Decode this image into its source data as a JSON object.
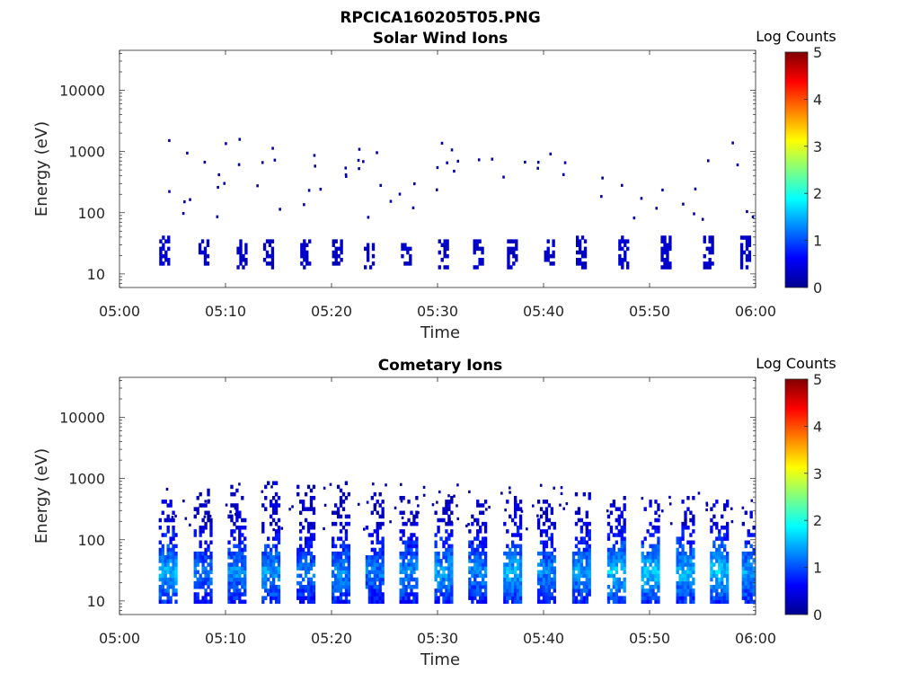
{
  "figure": {
    "title": "RPCICA160205T05.PNG"
  },
  "colorscale": {
    "stops": [
      "#00008f",
      "#0000ff",
      "#0080ff",
      "#00ffff",
      "#80ff80",
      "#ffff00",
      "#ff8000",
      "#ff0000",
      "#800000"
    ]
  },
  "chart_data": [
    {
      "type": "heatmap",
      "title": "Solar Wind Ions",
      "xlabel": "Time",
      "ylabel": "Energy (eV)",
      "x_range": [
        "05:00",
        "06:00"
      ],
      "x_ticks": [
        "05:00",
        "05:10",
        "05:20",
        "05:30",
        "05:40",
        "05:50",
        "06:00"
      ],
      "y_scale": "log",
      "y_range": [
        6,
        45000
      ],
      "y_ticks": [
        10,
        100,
        1000,
        10000
      ],
      "y_tick_labels": [
        "10",
        "100",
        "1000",
        "10000"
      ],
      "colorbar": {
        "label": "Log Counts",
        "range": [
          0,
          5
        ],
        "ticks": [
          "0",
          "1",
          "2",
          "3",
          "4",
          "5"
        ]
      },
      "clusters": [
        {
          "t": 4.2,
          "e_low": 15,
          "e_high": 35,
          "log_counts": 0.3
        },
        {
          "t": 7.9,
          "e_low": 17,
          "e_high": 30,
          "log_counts": 0.25
        },
        {
          "t": 11.5,
          "e_low": 14,
          "e_high": 30,
          "log_counts": 0.2
        },
        {
          "t": 14.0,
          "e_low": 14,
          "e_high": 30,
          "log_counts": 0.2
        },
        {
          "t": 17.5,
          "e_low": 14,
          "e_high": 30,
          "log_counts": 0.25
        },
        {
          "t": 20.5,
          "e_low": 15,
          "e_high": 30,
          "log_counts": 0.2
        },
        {
          "t": 23.5,
          "e_low": 14,
          "e_high": 30,
          "log_counts": 0.2
        },
        {
          "t": 27.0,
          "e_low": 17,
          "e_high": 28,
          "log_counts": 0.25
        },
        {
          "t": 30.5,
          "e_low": 14,
          "e_high": 30,
          "log_counts": 0.2
        },
        {
          "t": 33.8,
          "e_low": 14,
          "e_high": 30,
          "log_counts": 0.25
        },
        {
          "t": 37.0,
          "e_low": 14,
          "e_high": 30,
          "log_counts": 0.2
        },
        {
          "t": 40.5,
          "e_low": 14,
          "e_high": 30,
          "log_counts": 0.25
        },
        {
          "t": 43.5,
          "e_low": 14,
          "e_high": 35,
          "log_counts": 0.2
        },
        {
          "t": 47.5,
          "e_low": 14,
          "e_high": 35,
          "log_counts": 0.3
        },
        {
          "t": 51.5,
          "e_low": 14,
          "e_high": 35,
          "log_counts": 0.25
        },
        {
          "t": 55.5,
          "e_low": 14,
          "e_high": 35,
          "log_counts": 0.25
        },
        {
          "t": 59.0,
          "e_low": 14,
          "e_high": 35,
          "log_counts": 0.25
        }
      ]
    },
    {
      "type": "heatmap",
      "title": "Cometary Ions",
      "xlabel": "Time",
      "ylabel": "Energy (eV)",
      "x_range": [
        "05:00",
        "06:00"
      ],
      "x_ticks": [
        "05:00",
        "05:10",
        "05:20",
        "05:30",
        "05:40",
        "05:50",
        "06:00"
      ],
      "y_scale": "log",
      "y_range": [
        6,
        45000
      ],
      "y_ticks": [
        10,
        100,
        1000,
        10000
      ],
      "y_tick_labels": [
        "10",
        "100",
        "1000",
        "10000"
      ],
      "colorbar": {
        "label": "Log Counts",
        "range": [
          0,
          5
        ],
        "ticks": [
          "0",
          "1",
          "2",
          "3",
          "4",
          "5"
        ]
      },
      "clusters": [
        {
          "t": 4.5,
          "e_low": 10,
          "e_high": 500,
          "log_counts": 1.5
        },
        {
          "t": 7.8,
          "e_low": 10,
          "e_high": 600,
          "log_counts": 1.2
        },
        {
          "t": 11.0,
          "e_low": 10,
          "e_high": 700,
          "log_counts": 1.3
        },
        {
          "t": 14.2,
          "e_low": 10,
          "e_high": 800,
          "log_counts": 1.4
        },
        {
          "t": 17.5,
          "e_low": 10,
          "e_high": 700,
          "log_counts": 1.2
        },
        {
          "t": 20.8,
          "e_low": 10,
          "e_high": 800,
          "log_counts": 1.3
        },
        {
          "t": 24.0,
          "e_low": 10,
          "e_high": 500,
          "log_counts": 1.2
        },
        {
          "t": 27.2,
          "e_low": 10,
          "e_high": 450,
          "log_counts": 1.3
        },
        {
          "t": 30.5,
          "e_low": 10,
          "e_high": 450,
          "log_counts": 1.4
        },
        {
          "t": 33.7,
          "e_low": 10,
          "e_high": 400,
          "log_counts": 1.3
        },
        {
          "t": 37.0,
          "e_low": 10,
          "e_high": 450,
          "log_counts": 1.5
        },
        {
          "t": 40.2,
          "e_low": 10,
          "e_high": 450,
          "log_counts": 1.3
        },
        {
          "t": 43.5,
          "e_low": 10,
          "e_high": 500,
          "log_counts": 1.4
        },
        {
          "t": 46.8,
          "e_low": 10,
          "e_high": 450,
          "log_counts": 1.6
        },
        {
          "t": 50.0,
          "e_low": 10,
          "e_high": 450,
          "log_counts": 1.6
        },
        {
          "t": 53.3,
          "e_low": 10,
          "e_high": 450,
          "log_counts": 1.5
        },
        {
          "t": 56.5,
          "e_low": 10,
          "e_high": 450,
          "log_counts": 1.6
        },
        {
          "t": 59.5,
          "e_low": 10,
          "e_high": 250,
          "log_counts": 1.4
        }
      ]
    }
  ]
}
